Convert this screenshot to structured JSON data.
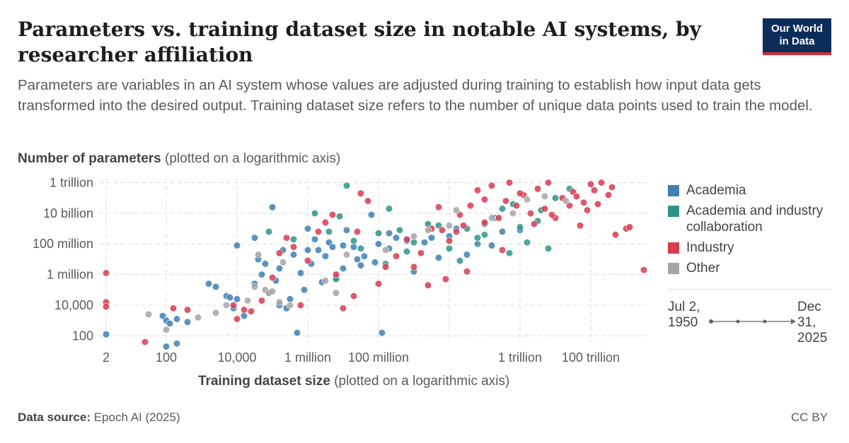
{
  "title": "Parameters vs. training dataset size in notable AI systems, by researcher affiliation",
  "subtitle": "Parameters are variables in an AI system whose values are adjusted during training to establish how input data gets transformed into the desired output. Training dataset size refers to the number of unique data points used to train the model.",
  "logo": {
    "line1": "Our World",
    "line2": "in Data",
    "bg_color": "#0c2d5a",
    "accent_color": "#d42b37"
  },
  "footer": {
    "source_label": "Data source:",
    "source_value": "Epoch AI (2025)",
    "license": "CC BY"
  },
  "timeline": {
    "start": "Jul 2, 1950",
    "end": "Dec 31, 2025"
  },
  "chart_data": {
    "type": "scatter",
    "title": "Parameters vs. training dataset size in notable AI systems, by researcher affiliation",
    "xlabel_bold": "Training dataset size",
    "xlabel_note": "(plotted on a logarithmic axis)",
    "ylabel_bold": "Number of parameters",
    "ylabel_note": "(plotted on a logarithmic axis)",
    "x_scale": "log10",
    "y_scale": "log10",
    "xlim_log10": [
      0.1,
      15.6
    ],
    "ylim_log10": [
      1.6,
      12.3
    ],
    "x_ticks": [
      {
        "log": 0.3,
        "label": "2"
      },
      {
        "log": 2,
        "label": "100"
      },
      {
        "log": 4,
        "label": "10,000"
      },
      {
        "log": 6,
        "label": "1 million"
      },
      {
        "log": 8,
        "label": "100 million"
      },
      {
        "log": 10,
        "label": ""
      },
      {
        "log": 12,
        "label": "1 trillion"
      },
      {
        "log": 14,
        "label": "100 trillion"
      }
    ],
    "y_ticks": [
      {
        "log": 2,
        "label": "100"
      },
      {
        "log": 4,
        "label": "10,000"
      },
      {
        "log": 6,
        "label": "1 million"
      },
      {
        "log": 8,
        "label": "100 million"
      },
      {
        "log": 10,
        "label": "10 billion"
      },
      {
        "log": 12,
        "label": "1 trillion"
      }
    ],
    "grid": true,
    "legend_position": "right",
    "series": [
      {
        "name": "Academia",
        "color": "#3e80b5",
        "points": [
          [
            0.3,
            2.1
          ],
          [
            1.9,
            3.3
          ],
          [
            2.0,
            3.0
          ],
          [
            2.1,
            2.8
          ],
          [
            2.3,
            3.1
          ],
          [
            2.0,
            1.3
          ],
          [
            2.3,
            1.5
          ],
          [
            2.6,
            2.9
          ],
          [
            3.2,
            5.4
          ],
          [
            3.4,
            5.2
          ],
          [
            3.7,
            4.6
          ],
          [
            3.8,
            4.5
          ],
          [
            3.9,
            3.8
          ],
          [
            4.0,
            4.4
          ],
          [
            4.0,
            7.9
          ],
          [
            4.2,
            3.3
          ],
          [
            4.5,
            5.4
          ],
          [
            4.5,
            8.4
          ],
          [
            4.6,
            7.0
          ],
          [
            4.7,
            6.0
          ],
          [
            4.8,
            6.7
          ],
          [
            4.9,
            4.8
          ],
          [
            5.0,
            10.4
          ],
          [
            5.1,
            5.6
          ],
          [
            5.2,
            6.4
          ],
          [
            5.2,
            4.0
          ],
          [
            5.3,
            7.6
          ],
          [
            5.4,
            3.8
          ],
          [
            5.5,
            4.4
          ],
          [
            5.6,
            7.3
          ],
          [
            5.7,
            2.2
          ],
          [
            5.8,
            6.1
          ],
          [
            5.9,
            5.0
          ],
          [
            6.0,
            7.6
          ],
          [
            6.0,
            9.0
          ],
          [
            6.1,
            6.7
          ],
          [
            6.2,
            8.3
          ],
          [
            6.3,
            7.6
          ],
          [
            6.4,
            5.5
          ],
          [
            6.5,
            7.2
          ],
          [
            6.6,
            8.1
          ],
          [
            6.7,
            7.8
          ],
          [
            6.8,
            5.8
          ],
          [
            7.0,
            6.4
          ],
          [
            7.0,
            7.9
          ],
          [
            7.1,
            8.9
          ],
          [
            7.3,
            7.8
          ],
          [
            7.4,
            7.0
          ],
          [
            7.5,
            6.6
          ],
          [
            7.6,
            7.2
          ],
          [
            7.8,
            9.9
          ],
          [
            7.9,
            6.8
          ],
          [
            8.0,
            8.0
          ],
          [
            8.1,
            2.2
          ],
          [
            8.3,
            7.7
          ],
          [
            8.3,
            8.7
          ],
          [
            8.5,
            8.4
          ],
          [
            8.8,
            8.2
          ],
          [
            9.0,
            6.2
          ],
          [
            9.3,
            8.1
          ],
          [
            9.5,
            8.4
          ],
          [
            9.7,
            7.1
          ],
          [
            10.0,
            8.5
          ],
          [
            10.2,
            9.0
          ],
          [
            10.5,
            7.3
          ],
          [
            10.8,
            8.0
          ],
          [
            11.0,
            9.3
          ],
          [
            11.2,
            7.9
          ],
          [
            11.5,
            8.8
          ],
          [
            12.0,
            8.9
          ]
        ]
      },
      {
        "name": "Academia and industry collaboration",
        "color": "#2f9488",
        "points": [
          [
            4.9,
            8.8
          ],
          [
            5.6,
            8.3
          ],
          [
            6.2,
            10.0
          ],
          [
            6.6,
            8.8
          ],
          [
            6.8,
            5.7
          ],
          [
            6.9,
            9.8
          ],
          [
            7.1,
            11.8
          ],
          [
            7.3,
            8.2
          ],
          [
            7.5,
            7.7
          ],
          [
            8.0,
            8.7
          ],
          [
            8.2,
            6.7
          ],
          [
            8.3,
            10.3
          ],
          [
            8.6,
            8.9
          ],
          [
            8.8,
            7.5
          ],
          [
            9.0,
            8.1
          ],
          [
            9.4,
            9.3
          ],
          [
            9.7,
            9.2
          ],
          [
            10.0,
            7.7
          ],
          [
            10.3,
            6.9
          ],
          [
            10.5,
            9.0
          ],
          [
            10.8,
            8.4
          ],
          [
            11.0,
            8.6
          ],
          [
            11.3,
            9.7
          ],
          [
            11.5,
            10.3
          ],
          [
            11.7,
            7.4
          ],
          [
            12.0,
            9.1
          ],
          [
            12.2,
            8.1
          ],
          [
            12.5,
            9.5
          ],
          [
            12.8,
            7.7
          ],
          [
            13.0,
            11.0
          ],
          [
            13.4,
            11.6
          ],
          [
            11.8,
            10.6
          ],
          [
            12.6,
            10.2
          ]
        ]
      },
      {
        "name": "Industry",
        "color": "#d73c50",
        "points": [
          [
            0.3,
            6.1
          ],
          [
            0.3,
            4.2
          ],
          [
            0.3,
            3.9
          ],
          [
            1.4,
            1.6
          ],
          [
            2.2,
            3.8
          ],
          [
            2.6,
            3.7
          ],
          [
            3.9,
            4.0
          ],
          [
            4.0,
            3.1
          ],
          [
            4.2,
            3.7
          ],
          [
            4.4,
            3.6
          ],
          [
            4.7,
            4.3
          ],
          [
            5.0,
            5.8
          ],
          [
            5.2,
            7.4
          ],
          [
            5.4,
            8.4
          ],
          [
            5.6,
            7.8
          ],
          [
            5.8,
            4.0
          ],
          [
            6.0,
            6.9
          ],
          [
            6.3,
            8.8
          ],
          [
            6.5,
            9.4
          ],
          [
            6.7,
            9.9
          ],
          [
            6.8,
            6.0
          ],
          [
            7.0,
            3.8
          ],
          [
            7.3,
            4.6
          ],
          [
            7.4,
            8.8
          ],
          [
            7.5,
            11.3
          ],
          [
            7.7,
            10.8
          ],
          [
            8.0,
            5.4
          ],
          [
            8.2,
            6.5
          ],
          [
            8.5,
            7.2
          ],
          [
            8.8,
            8.3
          ],
          [
            9.0,
            6.5
          ],
          [
            9.2,
            7.4
          ],
          [
            9.5,
            9.0
          ],
          [
            9.7,
            10.4
          ],
          [
            9.9,
            5.7
          ],
          [
            10.0,
            8.2
          ],
          [
            10.2,
            8.8
          ],
          [
            10.4,
            9.2
          ],
          [
            10.6,
            10.5
          ],
          [
            10.8,
            11.5
          ],
          [
            11.0,
            10.9
          ],
          [
            11.2,
            11.8
          ],
          [
            11.4,
            9.7
          ],
          [
            11.6,
            10.8
          ],
          [
            11.7,
            12.0
          ],
          [
            11.9,
            10.5
          ],
          [
            12.1,
            11.2
          ],
          [
            12.3,
            10.0
          ],
          [
            12.4,
            9.3
          ],
          [
            12.5,
            11.6
          ],
          [
            12.7,
            10.3
          ],
          [
            12.8,
            12.0
          ],
          [
            13.0,
            9.7
          ],
          [
            13.2,
            11.0
          ],
          [
            13.4,
            10.5
          ],
          [
            13.5,
            11.4
          ],
          [
            13.7,
            9.2
          ],
          [
            13.8,
            10.7
          ],
          [
            14.0,
            11.9
          ],
          [
            14.1,
            11.5
          ],
          [
            14.2,
            10.6
          ],
          [
            14.3,
            12.0
          ],
          [
            14.5,
            11.2
          ],
          [
            14.6,
            11.7
          ],
          [
            14.7,
            8.6
          ],
          [
            15.0,
            9.0
          ],
          [
            15.1,
            9.1
          ],
          [
            15.5,
            6.3
          ],
          [
            11.5,
            7.6
          ],
          [
            10.5,
            6.2
          ],
          [
            9.4,
            5.3
          ],
          [
            12.9,
            9.9
          ],
          [
            13.6,
            11.1
          ],
          [
            13.9,
            10.2
          ],
          [
            12.0,
            11.3
          ],
          [
            11.0,
            9.4
          ],
          [
            10.3,
            9.9
          ],
          [
            9.8,
            8.9
          ]
        ]
      },
      {
        "name": "Other",
        "color": "#a8a4a2",
        "points": [
          [
            1.5,
            3.4
          ],
          [
            2.0,
            2.4
          ],
          [
            2.9,
            3.2
          ],
          [
            3.4,
            3.5
          ],
          [
            3.7,
            4.0
          ],
          [
            4.3,
            4.3
          ],
          [
            4.5,
            5.2
          ],
          [
            4.6,
            7.3
          ],
          [
            4.8,
            5.0
          ],
          [
            4.9,
            4.8
          ],
          [
            5.0,
            4.9
          ],
          [
            5.2,
            4.2
          ],
          [
            5.5,
            4.0
          ],
          [
            5.3,
            6.8
          ],
          [
            6.5,
            5.6
          ],
          [
            6.8,
            4.8
          ],
          [
            7.1,
            7.3
          ],
          [
            8.2,
            7.6
          ],
          [
            9.0,
            8.5
          ],
          [
            9.4,
            8.9
          ],
          [
            10.0,
            9.2
          ],
          [
            10.2,
            10.2
          ],
          [
            11.2,
            9.7
          ],
          [
            11.8,
            10.0
          ],
          [
            12.2,
            10.9
          ],
          [
            12.7,
            11.1
          ],
          [
            13.3,
            10.8
          ]
        ]
      }
    ]
  }
}
